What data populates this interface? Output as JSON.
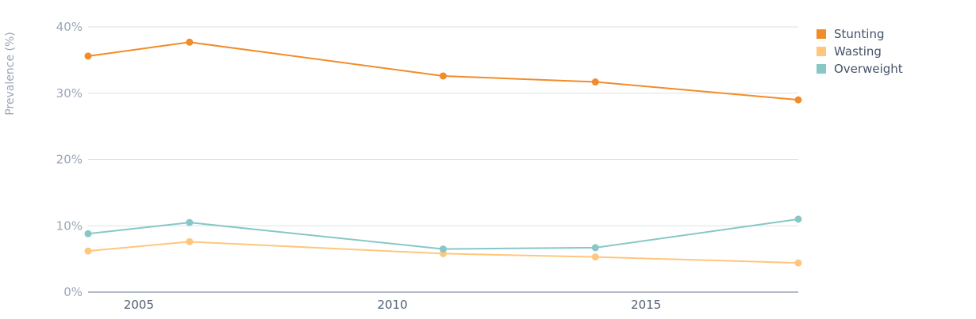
{
  "chart_data": {
    "type": "line",
    "title": "",
    "xlabel": "",
    "ylabel": "Prevalence (%)",
    "x_ticks": [
      2005,
      2010,
      2015
    ],
    "y_ticks": [
      0,
      10,
      20,
      30,
      40
    ],
    "y_tick_labels": [
      "0%",
      "10%",
      "20%",
      "30%",
      "40%"
    ],
    "xlim": [
      2004,
      2018
    ],
    "ylim": [
      0,
      40
    ],
    "grid": true,
    "legend_position": "top-right",
    "series": [
      {
        "name": "Stunting",
        "color": "#f28c28",
        "x": [
          2004,
          2006,
          2011,
          2014,
          2018
        ],
        "y": [
          35.6,
          37.7,
          32.6,
          31.7,
          29.0
        ]
      },
      {
        "name": "Wasting",
        "color": "#ffc67d",
        "x": [
          2004,
          2006,
          2011,
          2014,
          2018
        ],
        "y": [
          6.2,
          7.6,
          5.8,
          5.3,
          4.4
        ]
      },
      {
        "name": "Overweight",
        "color": "#88c7c7",
        "x": [
          2004,
          2006,
          2011,
          2014,
          2018
        ],
        "y": [
          8.8,
          10.5,
          6.5,
          6.7,
          11.0
        ]
      }
    ]
  }
}
